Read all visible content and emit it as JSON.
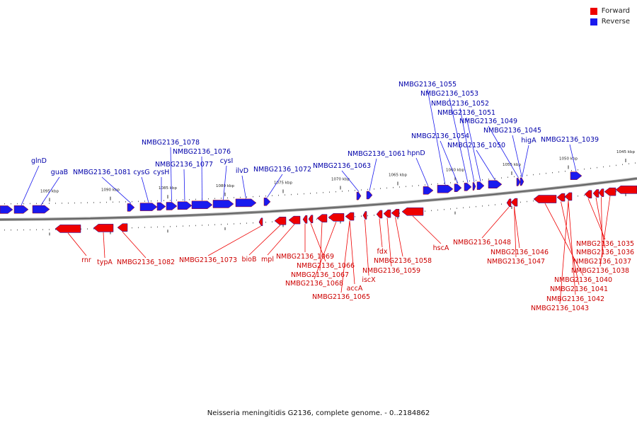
{
  "caption": "Neisseria meningitidis G2136, complete genome. - 0..2184862",
  "legend": {
    "forward_label": "Forward",
    "reverse_label": "Reverse",
    "forward_color": "#ee0000",
    "reverse_color": "#1a1aee"
  },
  "colors": {
    "forward_label": "#cc0000",
    "reverse_label": "#0000aa",
    "axis": "#777777"
  },
  "axis_ticks": [
    "1095 kbp",
    "1090 kbp",
    "1085 kbp",
    "1080 kbp",
    "1075 kbp",
    "1070 kbp",
    "1065 kbp",
    "1060 kbp",
    "1055 kbp",
    "1050 kbp",
    "1045 kbp"
  ],
  "reverse_genes": [
    "glnD",
    "guaB",
    "NMBG2136_1081",
    "cysG",
    "cysH",
    "NMBG2136_1078",
    "NMBG2136_1077",
    "NMBG2136_1076",
    "cysI",
    "ilvD",
    "NMBG2136_1072",
    "NMBG2136_1063",
    "NMBG2136_1061",
    "hpnD",
    "NMBG2136_1055",
    "NMBG2136_1054",
    "NMBG2136_1053",
    "NMBG2136_1052",
    "NMBG2136_1051",
    "NMBG2136_1050",
    "NMBG2136_1049",
    "NMBG2136_1045",
    "higA",
    "NMBG2136_1039"
  ],
  "forward_genes": [
    "rnr",
    "typA",
    "NMBG2136_1082",
    "NMBG2136_1073",
    "bioB",
    "mpl",
    "NMBG2136_1069",
    "NMBG2136_1066",
    "NMBG2136_1067",
    "NMBG2136_1068",
    "accA",
    "NMBG2136_1065",
    "iscX",
    "fdx",
    "NMBG2136_1058",
    "NMBG2136_1059",
    "hscA",
    "NMBG2136_1048",
    "NMBG2136_1046",
    "NMBG2136_1047",
    "NMBG2136_1040",
    "NMBG2136_1041",
    "NMBG2136_1042",
    "NMBG2136_1043",
    "NMBG2136_1035",
    "NMBG2136_1036",
    "NMBG2136_1037",
    "NMBG2136_1038"
  ]
}
